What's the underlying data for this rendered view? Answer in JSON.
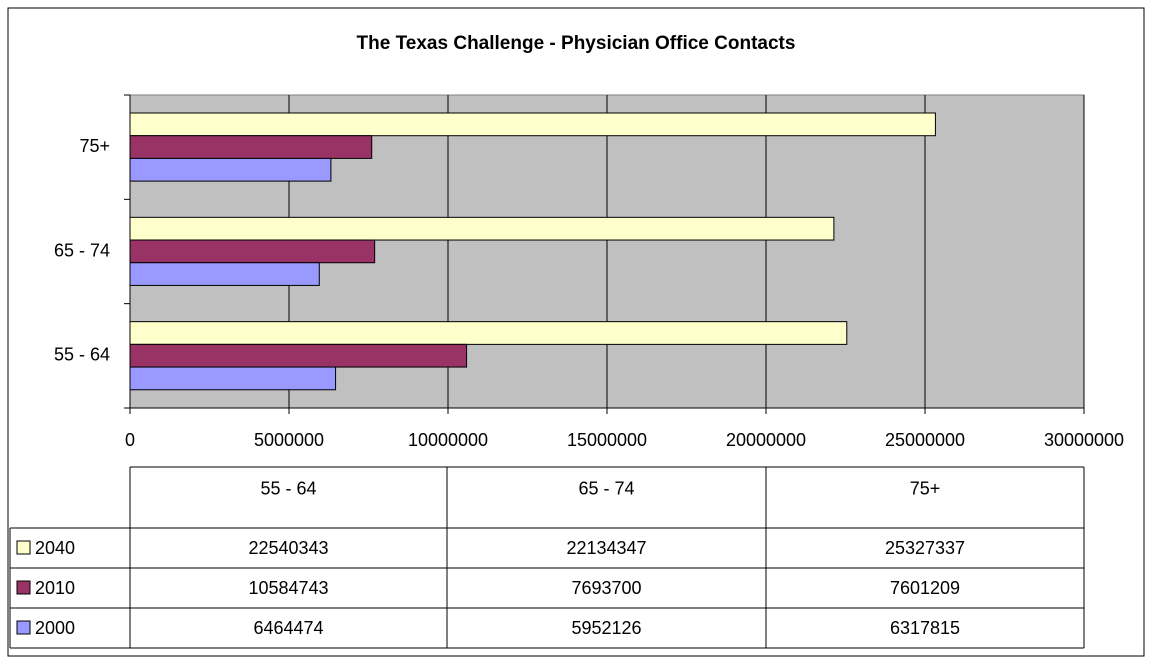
{
  "chart_data": {
    "type": "bar",
    "orientation": "horizontal",
    "title": "The Texas Challenge - Physician Office Contacts",
    "categories": [
      "55 - 64",
      "65 - 74",
      "75+"
    ],
    "series": [
      {
        "name": "2040",
        "color": "#ffffcc",
        "values": [
          22540343,
          22134347,
          25327337
        ]
      },
      {
        "name": "2010",
        "color": "#993366",
        "values": [
          10584743,
          7693700,
          7601209
        ]
      },
      {
        "name": "2000",
        "color": "#9999ff",
        "values": [
          6464474,
          5952126,
          6317815
        ]
      }
    ],
    "xlim": [
      0,
      30000000
    ],
    "xticks": [
      0,
      5000000,
      10000000,
      15000000,
      20000000,
      25000000,
      30000000
    ],
    "grid": true,
    "plot_background": "#c0c0c0",
    "data_table": true
  }
}
